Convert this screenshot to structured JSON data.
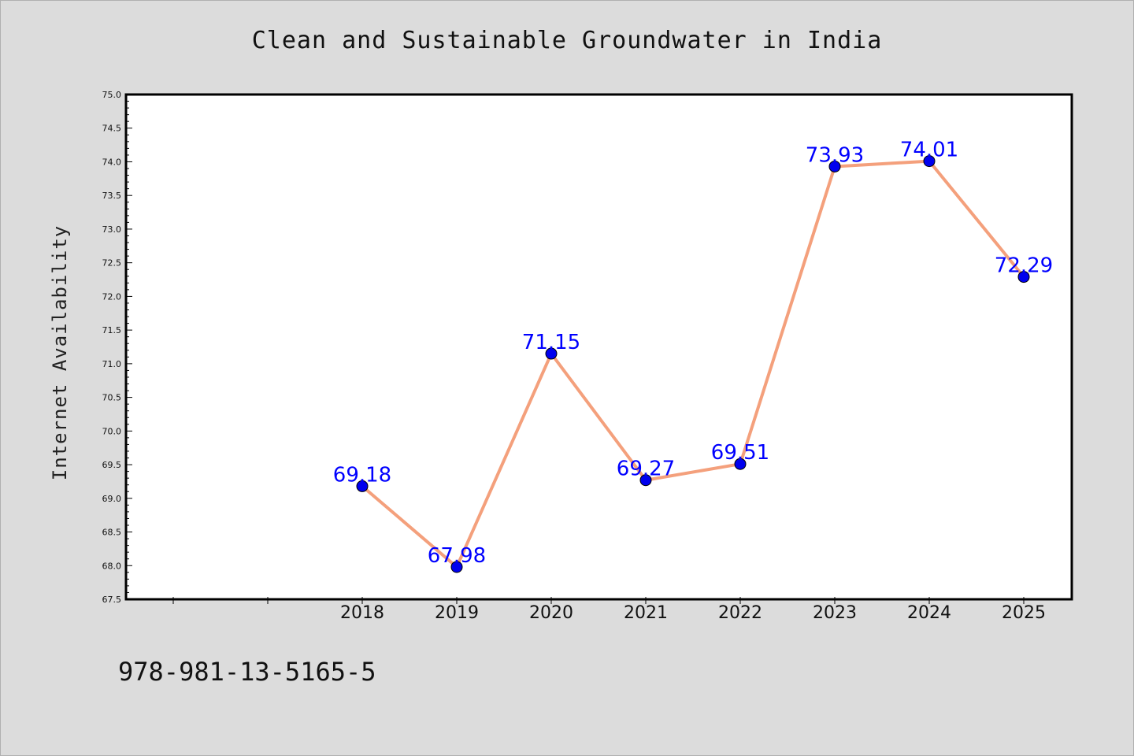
{
  "chart_data": {
    "type": "line",
    "title": "Clean and Sustainable Groundwater in India",
    "xlabel": "",
    "ylabel": "Internet Availability",
    "categories": [
      "2018",
      "2019",
      "2020",
      "2021",
      "2022",
      "2023",
      "2024",
      "2025"
    ],
    "series": [
      {
        "values": [
          69.18,
          67.98,
          71.15,
          69.27,
          69.51,
          73.93,
          74.01,
          72.29
        ],
        "labels": [
          "69.18",
          "67.98",
          "71.15",
          "69.27",
          "69.51",
          "73.93",
          "74.01",
          "72.29"
        ],
        "line_color": "#f4a07c",
        "marker_color": "#0000ee",
        "label_color": "#0000ff"
      }
    ],
    "ylim": [
      67.5,
      75.0
    ],
    "yticks": [
      "67.5",
      "68.0",
      "68.5",
      "69.0",
      "69.5",
      "70.0",
      "70.5",
      "71.0",
      "71.5",
      "72.0",
      "72.5",
      "73.0",
      "73.5",
      "74.0",
      "74.5",
      "75.0"
    ],
    "grid": false,
    "legend": "none"
  },
  "footer": {
    "code": "978-981-13-5165-5"
  }
}
